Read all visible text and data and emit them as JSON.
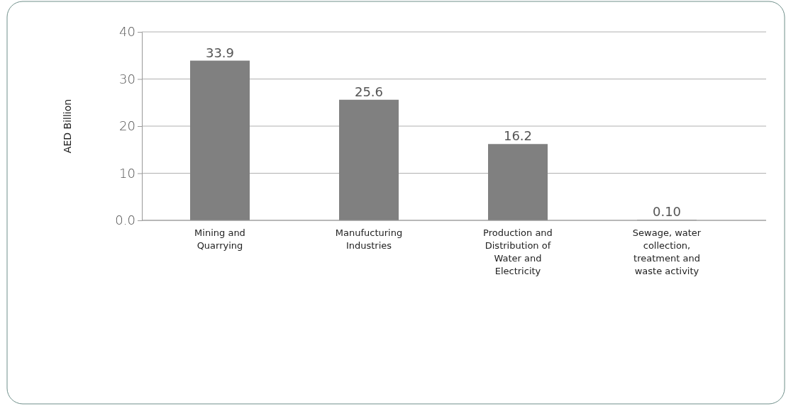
{
  "chart_data": {
    "type": "bar",
    "ylabel": "AED Billion",
    "categories": [
      "Mining and Quarrying",
      "Manufucturing Industries",
      "Production and Distribution of Water and Electricity",
      "Sewage, water collection, treatment and waste activity"
    ],
    "values": [
      33.9,
      25.6,
      16.2,
      0.1
    ],
    "value_labels": [
      "33.9",
      "25.6",
      "16.2",
      "0.10"
    ],
    "color": "#808080",
    "ylim": [
      0,
      40
    ],
    "yticks": [
      {
        "value": 0,
        "label": "0.0"
      },
      10,
      20,
      30,
      40
    ],
    "grid": "y"
  }
}
